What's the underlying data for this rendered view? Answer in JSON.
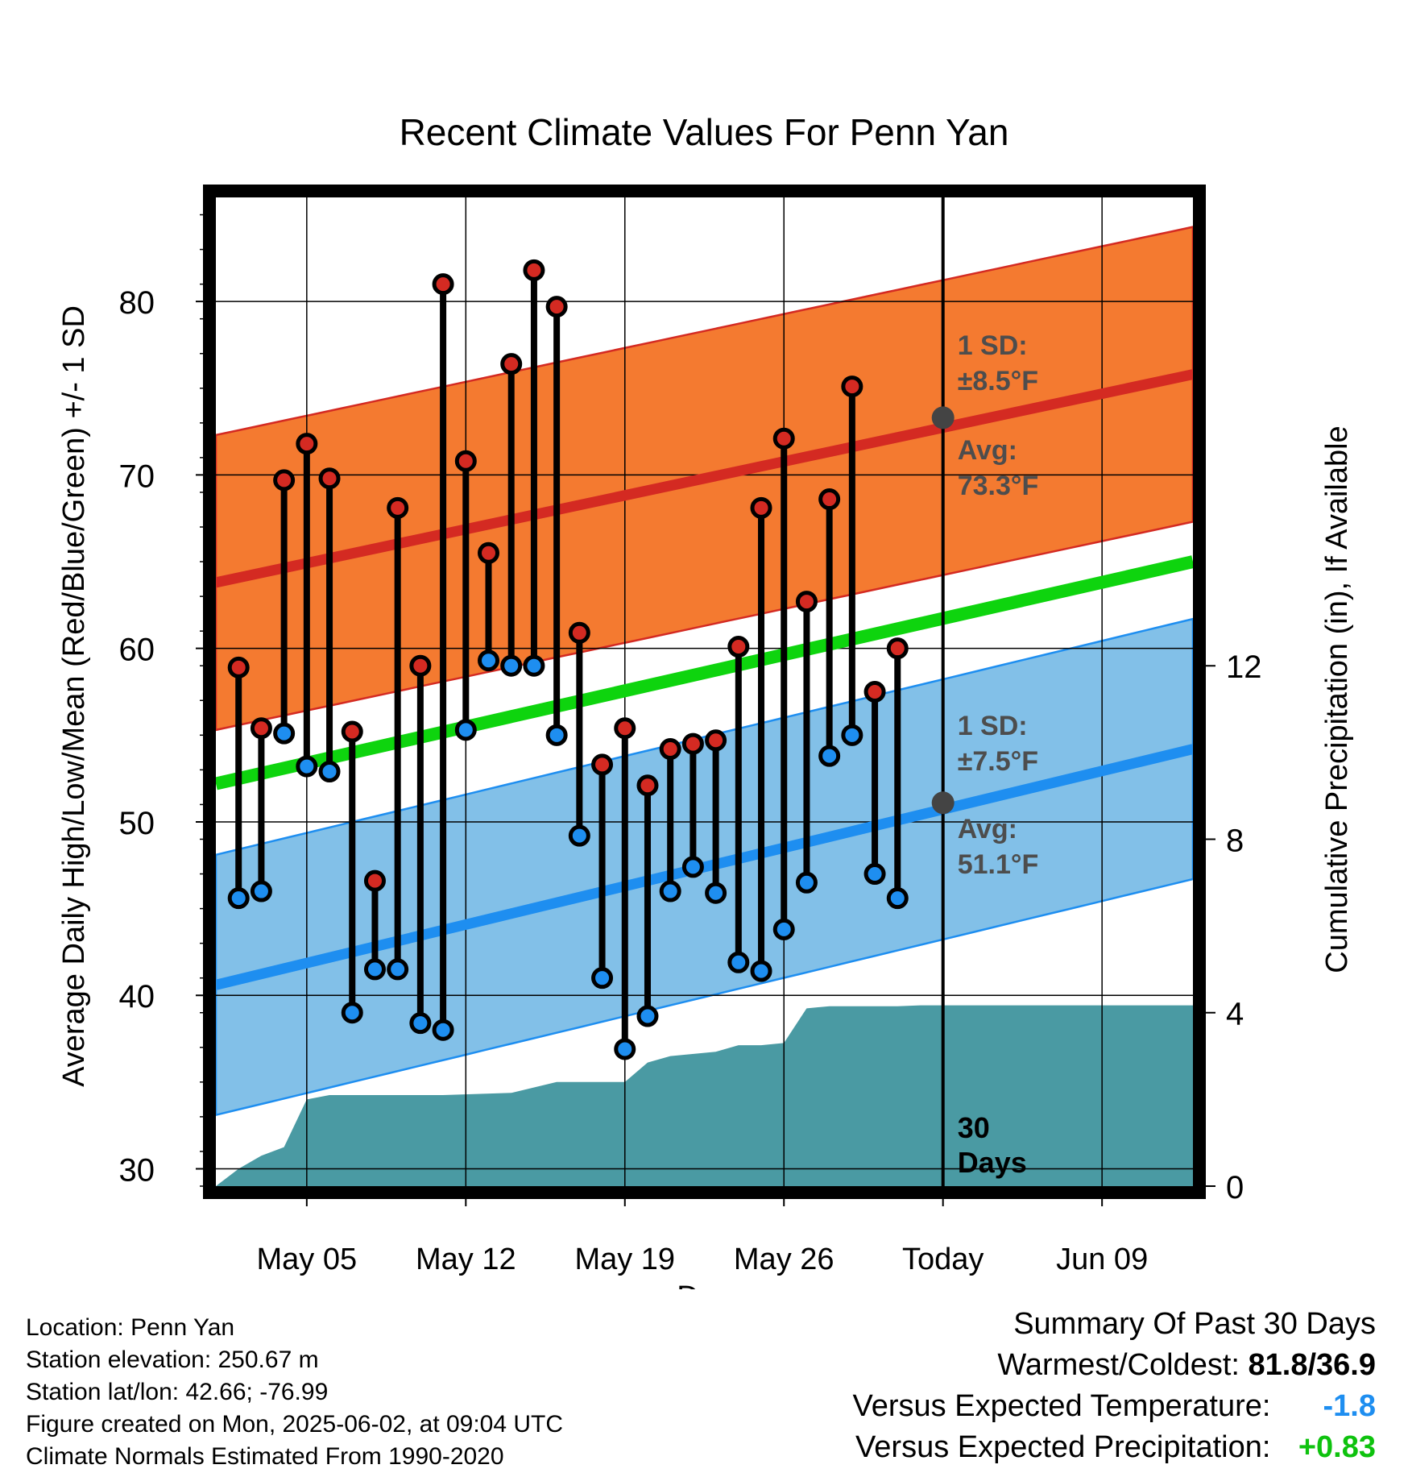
{
  "chart_data": {
    "type": "line",
    "title": "Recent Climate Values For Penn Yan",
    "xlabel": "Day",
    "ylabel": "Average Daily High/Low/Mean (Red/Blue/Green) +/- 1 SD",
    "y2label": "Cumulative Precipitation (in), If Available",
    "ylim": [
      29,
      86
    ],
    "y2lim": [
      0,
      22.8
    ],
    "yticks": [
      "30",
      "40",
      "50",
      "60",
      "70",
      "80"
    ],
    "y2ticks": [
      "0",
      "4",
      "8",
      "12"
    ],
    "xlim": [
      "2025-05-01",
      "2025-06-13"
    ],
    "xticks": [
      {
        "date": "2025-05-05",
        "label": "May 05"
      },
      {
        "date": "2025-05-12",
        "label": "May 12"
      },
      {
        "date": "2025-05-19",
        "label": "May 19"
      },
      {
        "date": "2025-05-26",
        "label": "May 26"
      },
      {
        "date": "2025-06-02",
        "label": "Today"
      },
      {
        "date": "2025-06-09",
        "label": "Jun 09"
      }
    ],
    "grid": true,
    "today": "2025-06-02",
    "today_label_top": "30",
    "today_label_bottom": "Days",
    "normal_high": {
      "start": 63.8,
      "end": 75.8,
      "sd_label": "1 SD:",
      "sd_value": "±8.5°F",
      "avg_label": "Avg:",
      "avg_value": "73.3°F",
      "avg_today": 73.3,
      "color": "#d42a22",
      "band_color": "#f47a30"
    },
    "normal_low": {
      "start": 40.6,
      "end": 54.2,
      "sd_label": "1 SD:",
      "sd_value": "±7.5°F",
      "avg_label": "Avg:",
      "avg_value": "51.1°F",
      "avg_today": 51.1,
      "color": "#1e8ef0",
      "band_color": "#82c0e8"
    },
    "normal_mean": {
      "start": 52.2,
      "end": 65.0,
      "color": "#0ed40e"
    },
    "daily": [
      {
        "date": "2025-05-02",
        "high": 58.9,
        "low": 45.6
      },
      {
        "date": "2025-05-03",
        "high": 55.4,
        "low": 46.0
      },
      {
        "date": "2025-05-04",
        "high": 69.7,
        "low": 55.1
      },
      {
        "date": "2025-05-05",
        "high": 71.8,
        "low": 53.2
      },
      {
        "date": "2025-05-06",
        "high": 69.8,
        "low": 52.9
      },
      {
        "date": "2025-05-07",
        "high": 55.2,
        "low": 39.0
      },
      {
        "date": "2025-05-08",
        "high": 46.6,
        "low": 41.5
      },
      {
        "date": "2025-05-09",
        "high": 68.1,
        "low": 41.5
      },
      {
        "date": "2025-05-10",
        "high": 59.0,
        "low": 38.4
      },
      {
        "date": "2025-05-11",
        "high": 81.0,
        "low": 38.0
      },
      {
        "date": "2025-05-12",
        "high": 70.8,
        "low": 55.3
      },
      {
        "date": "2025-05-13",
        "high": 65.5,
        "low": 59.3
      },
      {
        "date": "2025-05-14",
        "high": 76.4,
        "low": 59.0
      },
      {
        "date": "2025-05-15",
        "high": 81.8,
        "low": 59.0
      },
      {
        "date": "2025-05-16",
        "high": 79.7,
        "low": 55.0
      },
      {
        "date": "2025-05-17",
        "high": 60.9,
        "low": 49.2
      },
      {
        "date": "2025-05-18",
        "high": 53.3,
        "low": 41.0
      },
      {
        "date": "2025-05-19",
        "high": 55.4,
        "low": 36.9
      },
      {
        "date": "2025-05-20",
        "high": 52.1,
        "low": 38.8
      },
      {
        "date": "2025-05-21",
        "high": 54.2,
        "low": 46.0
      },
      {
        "date": "2025-05-22",
        "high": 54.5,
        "low": 47.4
      },
      {
        "date": "2025-05-23",
        "high": 54.7,
        "low": 45.9
      },
      {
        "date": "2025-05-24",
        "high": 60.1,
        "low": 41.9
      },
      {
        "date": "2025-05-25",
        "high": 68.1,
        "low": 41.4
      },
      {
        "date": "2025-05-26",
        "high": 72.1,
        "low": 43.8
      },
      {
        "date": "2025-05-27",
        "high": 62.7,
        "low": 46.5
      },
      {
        "date": "2025-05-28",
        "high": 68.6,
        "low": 53.8
      },
      {
        "date": "2025-05-29",
        "high": 75.1,
        "low": 55.0
      },
      {
        "date": "2025-05-30",
        "high": 57.5,
        "low": 47.0
      },
      {
        "date": "2025-05-31",
        "high": 60.0,
        "low": 45.6
      }
    ],
    "precip_cumulative": [
      {
        "date": "2025-05-01",
        "value": 0.0
      },
      {
        "date": "2025-05-02",
        "value": 0.4
      },
      {
        "date": "2025-05-03",
        "value": 0.7
      },
      {
        "date": "2025-05-04",
        "value": 0.9
      },
      {
        "date": "2025-05-05",
        "value": 2.0
      },
      {
        "date": "2025-05-06",
        "value": 2.1
      },
      {
        "date": "2025-05-07",
        "value": 2.1
      },
      {
        "date": "2025-05-11",
        "value": 2.1
      },
      {
        "date": "2025-05-14",
        "value": 2.15
      },
      {
        "date": "2025-05-16",
        "value": 2.4
      },
      {
        "date": "2025-05-19",
        "value": 2.4
      },
      {
        "date": "2025-05-20",
        "value": 2.85
      },
      {
        "date": "2025-05-21",
        "value": 3.0
      },
      {
        "date": "2025-05-23",
        "value": 3.1
      },
      {
        "date": "2025-05-24",
        "value": 3.25
      },
      {
        "date": "2025-05-25",
        "value": 3.25
      },
      {
        "date": "2025-05-26",
        "value": 3.3
      },
      {
        "date": "2025-05-27",
        "value": 4.1
      },
      {
        "date": "2025-05-28",
        "value": 4.15
      },
      {
        "date": "2025-05-31",
        "value": 4.15
      },
      {
        "date": "2025-06-01",
        "value": 4.17
      },
      {
        "date": "2025-06-13",
        "value": 4.17
      }
    ],
    "colors": {
      "precip": "#4a9aa3",
      "high_marker": "#d42a22",
      "low_marker": "#1e8ef0",
      "today_dot": "#444444"
    }
  },
  "metadata": {
    "location": "Location: Penn Yan",
    "elevation": "Station elevation: 250.67 m",
    "latlon": "Station lat/lon: 42.66; -76.99",
    "created": "Figure created on Mon, 2025-06-02, at 09:04 UTC",
    "normals": "Climate Normals Estimated From 1990-2020"
  },
  "summary": {
    "title": "Summary Of Past 30 Days",
    "warm_cold_label": "Warmest/Coldest:",
    "warm_cold_value": "81.8/36.9",
    "temp_label": "Versus Expected Temperature:",
    "temp_value": "-1.8",
    "temp_color": "#1e8ef0",
    "precip_label": "Versus Expected Precipitation:",
    "precip_value": "+0.83",
    "precip_color": "#0ec20e"
  }
}
